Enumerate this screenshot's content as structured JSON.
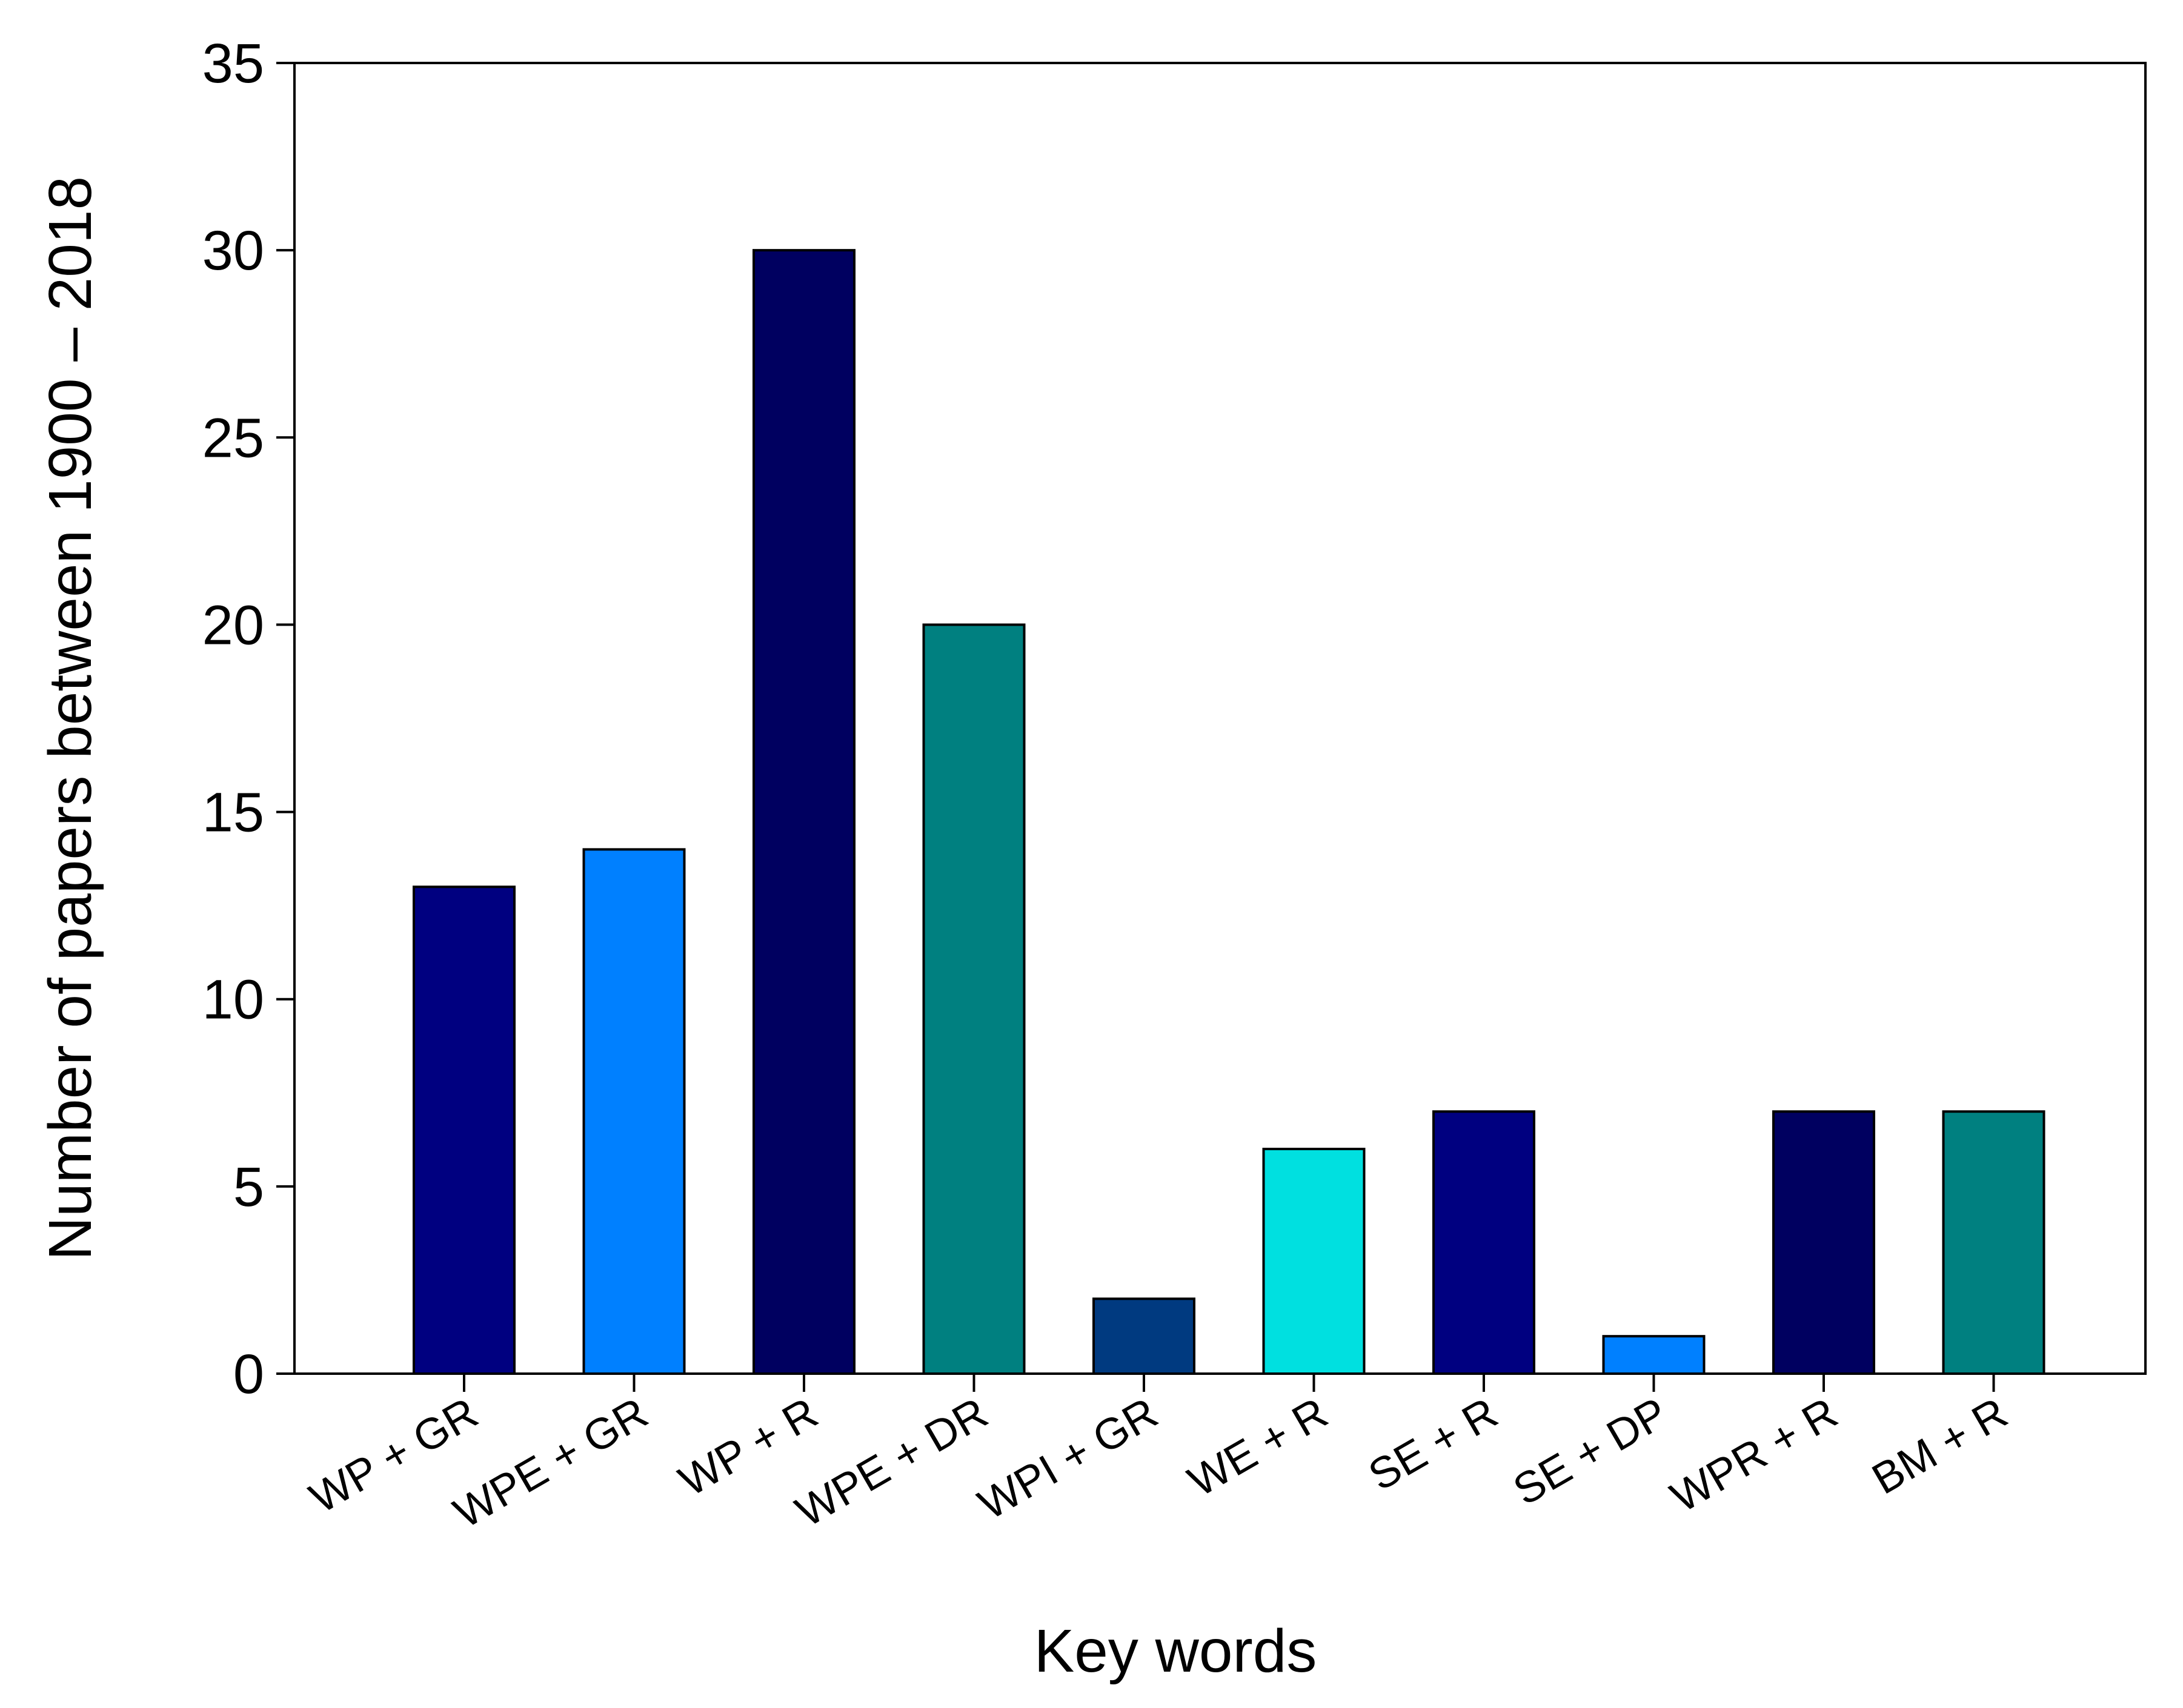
{
  "chart_data": {
    "type": "bar",
    "xlabel": "Key words",
    "ylabel": "Number of papers between 1900 – 2018",
    "ylim": [
      0,
      35
    ],
    "yticks": [
      0,
      5,
      10,
      15,
      20,
      25,
      30,
      35
    ],
    "grid": false,
    "legend": "none",
    "categories": [
      "WP + GR",
      "WPE + GR",
      "WP + R",
      "WPE + DR",
      "WPI + GR",
      "WE + R",
      "SE + R",
      "SE + DP",
      "WPR + R",
      "BM + R"
    ],
    "values": [
      13,
      14,
      30,
      20,
      2,
      6,
      7,
      1,
      7,
      7
    ],
    "colors": [
      "#000080",
      "#0080FF",
      "#000060",
      "#008080",
      "#003A80",
      "#00E0E0",
      "#000080",
      "#0080FF",
      "#000060",
      "#008080"
    ]
  }
}
